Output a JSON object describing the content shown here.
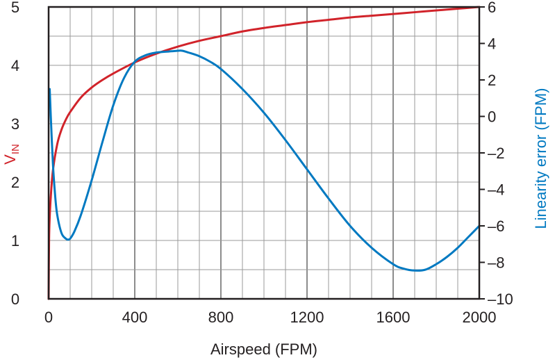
{
  "chart_data": {
    "type": "line",
    "xlabel": "Airspeed (FPM)",
    "ylabel_left": {
      "main": "V",
      "sub": "IN"
    },
    "ylabel_right": "Linearity error (FPM)",
    "xlim": [
      0,
      2000
    ],
    "ylim_left": [
      0,
      5
    ],
    "ylim_right": [
      -10,
      6
    ],
    "x_ticks": [
      0,
      400,
      800,
      1200,
      1600,
      2000
    ],
    "y_left_ticks": [
      0,
      1,
      2,
      3,
      4,
      5
    ],
    "y_right_ticks": [
      -10,
      -8,
      -6,
      -4,
      -2,
      0,
      2,
      4,
      6
    ],
    "x_tick_labels": [
      "0",
      "400",
      "800",
      "1200",
      "1600",
      "2000"
    ],
    "y_left_tick_labels": [
      "0",
      "1",
      "2",
      "3",
      "4",
      "5"
    ],
    "y_right_tick_labels": [
      "–10",
      "–8",
      "–6",
      "–4",
      "–2",
      "0",
      "2",
      "4",
      "6"
    ],
    "grid": true,
    "grid_x_step": 100,
    "grid_y_left_step": 0.5,
    "colors": {
      "vin": "#d1232a",
      "error": "#0079c1",
      "axis": "#231f20",
      "grid": "#9a9a9a"
    },
    "series": [
      {
        "axis": "left",
        "x": [
          0,
          2,
          5,
          10,
          20,
          40,
          60,
          80,
          100,
          150,
          200,
          250,
          300,
          400,
          500,
          600,
          700,
          800,
          900,
          1000,
          1100,
          1200,
          1300,
          1400,
          1500,
          1600,
          1700,
          1800,
          1900,
          2000
        ],
        "values": [
          0,
          1.0,
          1.4,
          1.75,
          2.2,
          2.65,
          2.9,
          3.07,
          3.2,
          3.45,
          3.62,
          3.75,
          3.86,
          4.05,
          4.2,
          4.32,
          4.42,
          4.5,
          4.58,
          4.64,
          4.69,
          4.74,
          4.78,
          4.82,
          4.85,
          4.88,
          4.91,
          4.94,
          4.97,
          5.0
        ]
      },
      {
        "axis": "right",
        "x": [
          5,
          10,
          20,
          30,
          40,
          60,
          80,
          90,
          100,
          120,
          150,
          200,
          250,
          300,
          350,
          400,
          450,
          500,
          550,
          600,
          620,
          650,
          700,
          750,
          800,
          900,
          1000,
          1100,
          1200,
          1300,
          1400,
          1500,
          1600,
          1650,
          1700,
          1750,
          1800,
          1850,
          1900,
          1950,
          2000
        ],
        "values": [
          1.5,
          0.0,
          -2.6,
          -4.3,
          -5.4,
          -6.4,
          -6.7,
          -6.75,
          -6.7,
          -6.3,
          -5.4,
          -3.5,
          -1.4,
          0.6,
          2.1,
          3.0,
          3.35,
          3.5,
          3.55,
          3.6,
          3.6,
          3.5,
          3.3,
          3.0,
          2.6,
          1.5,
          0.2,
          -1.3,
          -2.9,
          -4.5,
          -6.0,
          -7.2,
          -8.1,
          -8.35,
          -8.45,
          -8.4,
          -8.1,
          -7.7,
          -7.2,
          -6.6,
          -6.0
        ]
      }
    ]
  }
}
